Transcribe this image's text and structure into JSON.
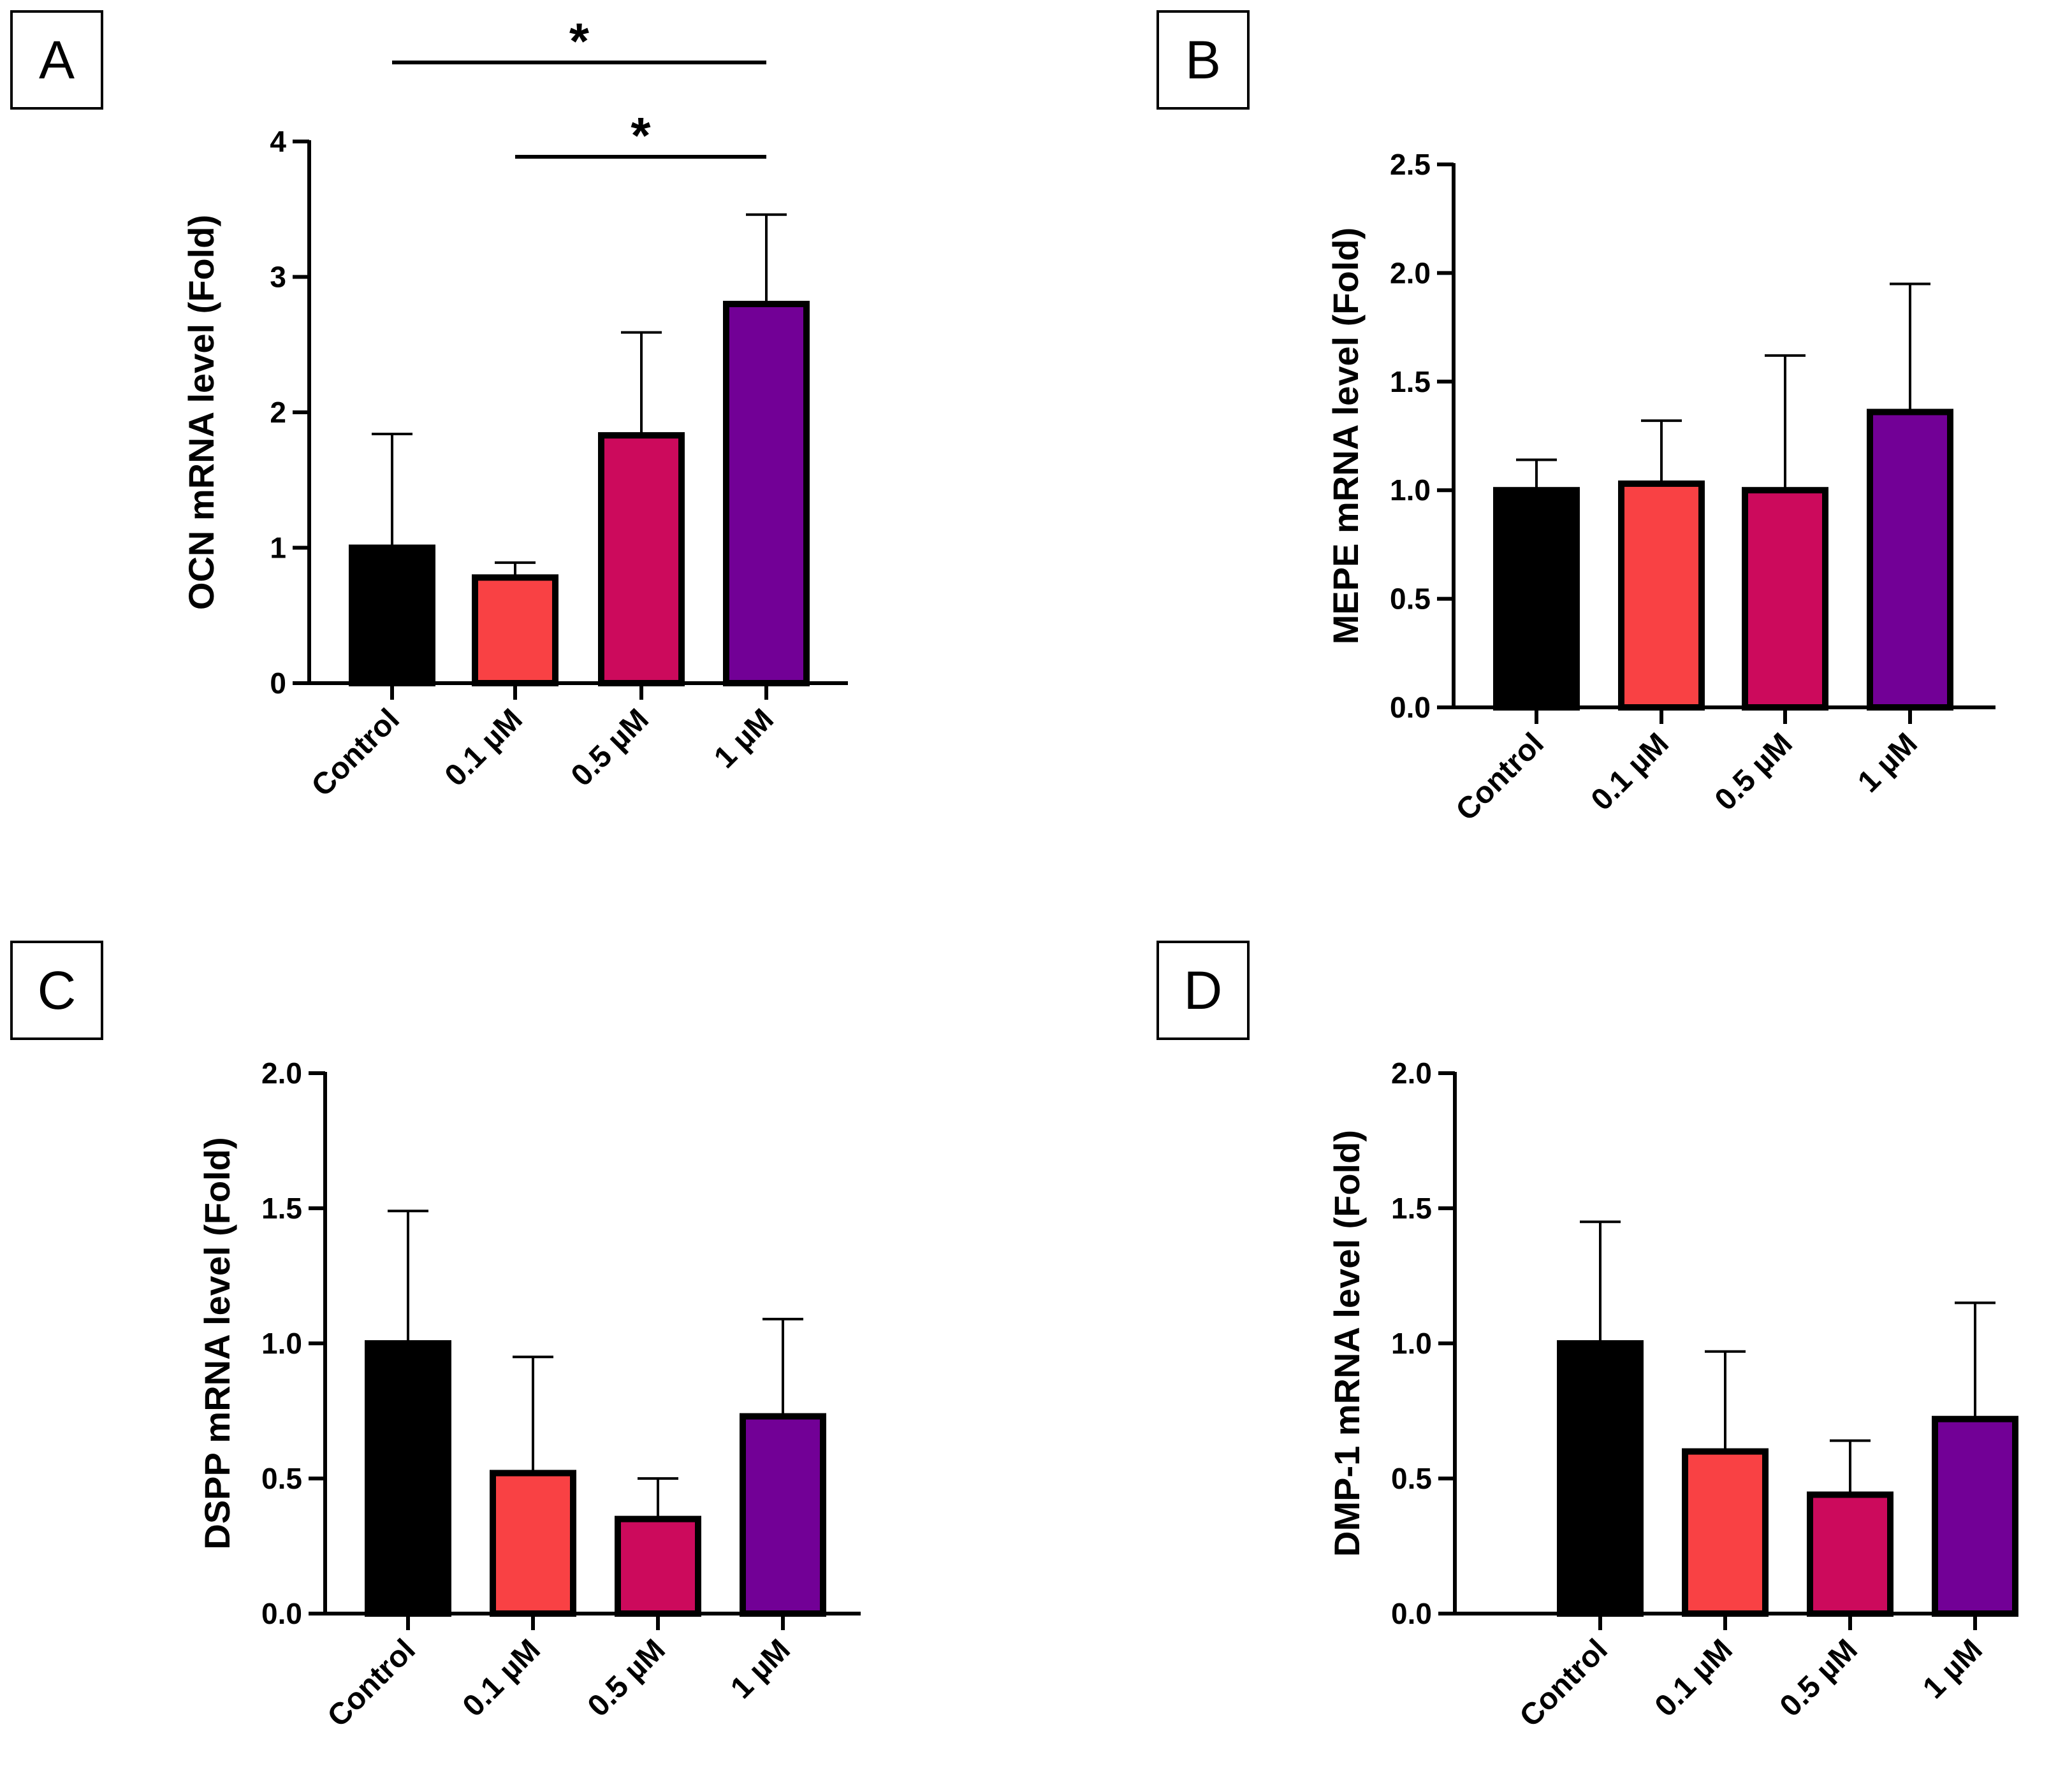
{
  "chart_data": [
    {
      "id": "A",
      "type": "bar",
      "panel_label": "A",
      "ylabel": "OCN mRNA level (Fold)",
      "ylim": [
        0,
        4
      ],
      "yticks": [
        0,
        1,
        2,
        3,
        4
      ],
      "ytick_labels": [
        "0",
        "1",
        "2",
        "3",
        "4"
      ],
      "categories": [
        "Control",
        "0.1 µM",
        "0.5 µM",
        "1 µM"
      ],
      "values": [
        1.0,
        0.78,
        1.83,
        2.8
      ],
      "errors": [
        0.84,
        0.11,
        0.76,
        0.66
      ],
      "colors": [
        "#000000",
        "#f94144",
        "#cc0a5c",
        "#720096"
      ],
      "significance": [
        {
          "from": 0,
          "to": 3,
          "label": "*"
        },
        {
          "from": 1,
          "to": 3,
          "label": "*"
        }
      ]
    },
    {
      "id": "B",
      "type": "bar",
      "panel_label": "B",
      "ylabel": "MEPE mRNA level (Fold)",
      "ylim": [
        0,
        2.5
      ],
      "yticks": [
        0,
        0.5,
        1.0,
        1.5,
        2.0,
        2.5
      ],
      "ytick_labels": [
        "0.0",
        "0.5",
        "1.0",
        "1.5",
        "2.0",
        "2.5"
      ],
      "categories": [
        "Control",
        "0.1 µM",
        "0.5 µM",
        "1 µM"
      ],
      "values": [
        1.0,
        1.03,
        1.0,
        1.36
      ],
      "errors": [
        0.14,
        0.29,
        0.62,
        0.59
      ],
      "colors": [
        "#000000",
        "#f94144",
        "#cc0a5c",
        "#720096"
      ],
      "significance": []
    },
    {
      "id": "C",
      "type": "bar",
      "panel_label": "C",
      "ylabel": "DSPP mRNA level (Fold)",
      "ylim": [
        0,
        2.0
      ],
      "yticks": [
        0,
        0.5,
        1.0,
        1.5,
        2.0
      ],
      "ytick_labels": [
        "0.0",
        "0.5",
        "1.0",
        "1.5",
        "2.0"
      ],
      "categories": [
        "Control",
        "0.1 µM",
        "0.5 µM",
        "1 µM"
      ],
      "values": [
        1.0,
        0.52,
        0.35,
        0.73
      ],
      "errors": [
        0.49,
        0.43,
        0.15,
        0.36
      ],
      "colors": [
        "#000000",
        "#f94144",
        "#cc0a5c",
        "#720096"
      ],
      "significance": []
    },
    {
      "id": "D",
      "type": "bar",
      "panel_label": "D",
      "ylabel": "DMP-1 mRNA level (Fold)",
      "ylim": [
        0,
        2.0
      ],
      "yticks": [
        0,
        0.5,
        1.0,
        1.5,
        2.0
      ],
      "ytick_labels": [
        "0.0",
        "0.5",
        "1.0",
        "1.5",
        "2.0"
      ],
      "categories": [
        "Control",
        "0.1 µM",
        "0.5 µM",
        "1 µM"
      ],
      "values": [
        1.0,
        0.6,
        0.44,
        0.72
      ],
      "errors": [
        0.45,
        0.37,
        0.2,
        0.43
      ],
      "colors": [
        "#000000",
        "#f94144",
        "#cc0a5c",
        "#720096"
      ],
      "significance": []
    }
  ]
}
